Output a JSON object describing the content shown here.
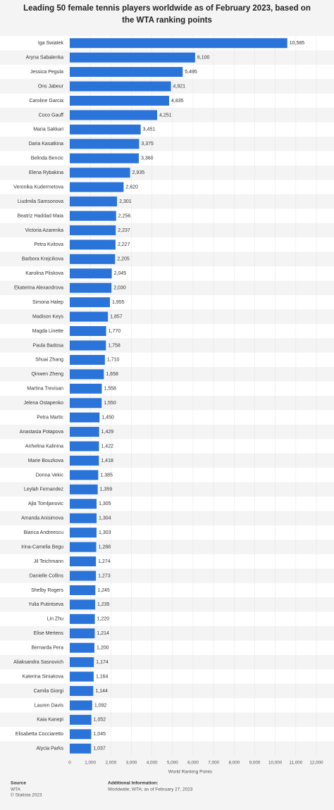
{
  "chart_data": {
    "type": "bar",
    "orientation": "horizontal",
    "title": "Leading 50 female tennis players worldwide as of February 2023, based on the WTA ranking points",
    "x_label": "World Ranking Points",
    "color": "#2a73d9",
    "grid": true,
    "categories": [
      "Iga Swiatek",
      "Aryna Sabalenka",
      "Jessica Pegula",
      "Ons Jabeur",
      "Caroline Garcia",
      "Coco Gauff",
      "Maria Sakkari",
      "Daria Kasatkina",
      "Belinda Bencic",
      "Elena Rybakina",
      "Veronika Kudermetova",
      "Liudmila Samsonova",
      "Beatriz Haddad Maia",
      "Victoria Azarenka",
      "Petra Kvitova",
      "Barbora Krejcikova",
      "Karolina Pliskova",
      "Ekaterina Alexandrova",
      "Simona Halep",
      "Madison Keys",
      "Magda Linette",
      "Paula Badosa",
      "Shuai Zhang",
      "Qinwen Zheng",
      "Martina Trevisan",
      "Jelena Ostapenko",
      "Petra Martic",
      "Anastasia Potapova",
      "Anhelina Kalinina",
      "Marie Bouzkova",
      "Donna Vekic",
      "Leylah Fernandez",
      "Ajla Tomljanovic",
      "Amanda Anisimova",
      "Bianca Andreescu",
      "Irina-Camelia Begu",
      "Jil Teichmann",
      "Danielle Collins",
      "Shelby Rogers",
      "Yulia Putintseva",
      "Lin Zhu",
      "Elise Mertens",
      "Bernarda Pera",
      "Aliaksandra Sasnovich",
      "Katerina Siniakova",
      "Camila Giorgi",
      "Lauren Davis",
      "Kaia Kanepi",
      "Elisabetta Cocciaretto",
      "Alycia Parks"
    ],
    "values": [
      10585,
      6100,
      5495,
      4921,
      4835,
      4251,
      3451,
      3375,
      3360,
      2935,
      2620,
      2301,
      2256,
      2237,
      2227,
      2205,
      2045,
      2030,
      1955,
      1857,
      1770,
      1758,
      1710,
      1658,
      1558,
      1550,
      1450,
      1429,
      1422,
      1418,
      1385,
      1359,
      1305,
      1304,
      1303,
      1288,
      1274,
      1273,
      1245,
      1235,
      1220,
      1214,
      1200,
      1174,
      1164,
      1144,
      1092,
      1052,
      1045,
      1037
    ],
    "value_labels": [
      "10,585",
      "6,100",
      "5,495",
      "4,921",
      "4,835",
      "4,251",
      "3,451",
      "3,375",
      "3,360",
      "2,935",
      "2,620",
      "2,301",
      "2,256",
      "2,237",
      "2,227",
      "2,205",
      "2,045",
      "2,030",
      "1,955",
      "1,857",
      "1,770",
      "1,758",
      "1,710",
      "1,658",
      "1,558",
      "1,550",
      "1,450",
      "1,429",
      "1,422",
      "1,418",
      "1,385",
      "1,359",
      "1,305",
      "1,304",
      "1,303",
      "1,288",
      "1,274",
      "1,273",
      "1,245",
      "1,235",
      "1,220",
      "1,214",
      "1,200",
      "1,174",
      "1,164",
      "1,144",
      "1,092",
      "1,052",
      "1,045",
      "1,037"
    ],
    "xlim": [
      0,
      12000
    ],
    "xticks": [
      0,
      {
        "value": 1000,
        "label": "1,000"
      },
      {
        "value": 2000,
        "label": "2,000"
      },
      {
        "value": 3000,
        "label": "3,000"
      },
      {
        "value": 4000,
        "label": "4,000"
      },
      {
        "value": 5000,
        "label": "5,000"
      },
      {
        "value": 6000,
        "label": "6,000"
      },
      {
        "value": 7000,
        "label": "7,000"
      },
      {
        "value": 8000,
        "label": "8,000"
      },
      {
        "value": 9000,
        "label": "9,000"
      },
      {
        "value": 10000,
        "label": "10,000"
      },
      {
        "value": 11000,
        "label": "11,000"
      },
      {
        "value": 12000,
        "label": "12,000"
      }
    ]
  },
  "footer": {
    "source_heading": "Source",
    "source": "WTA",
    "copyright": "© Statista 2023",
    "info_heading": "Additional Information:",
    "info": "Worldwide; WTA; as of February 27, 2023"
  }
}
